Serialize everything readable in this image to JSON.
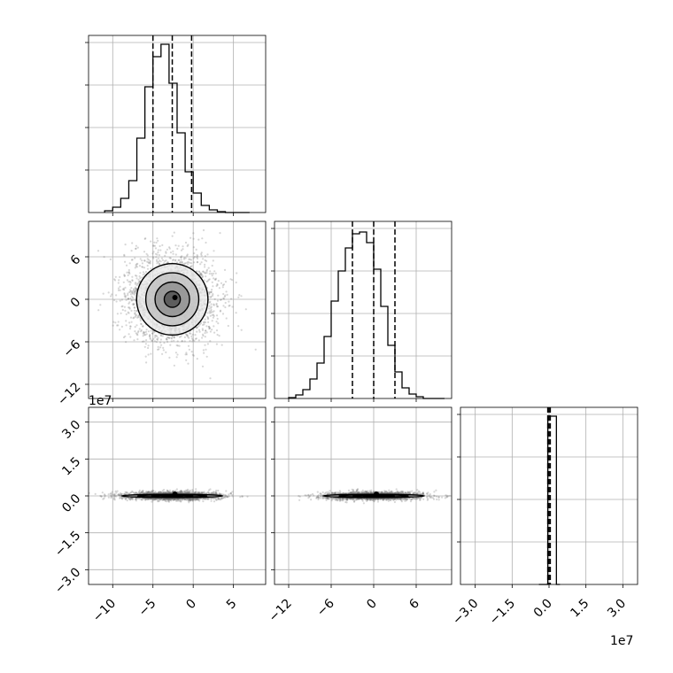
{
  "chart_data": [
    {
      "type": "histogram",
      "panel": "diag-0",
      "xlim": [
        -13,
        9
      ],
      "ylim": [
        0,
        1
      ],
      "x_ticks": [
        -10,
        -5,
        0,
        5
      ],
      "bin_edges": [
        -11,
        -10,
        -9,
        -8,
        -7,
        -6,
        -5,
        -4,
        -3,
        -2,
        -1,
        0,
        1,
        2,
        3,
        4,
        5,
        6,
        7
      ],
      "counts": [
        0.01,
        0.03,
        0.08,
        0.18,
        0.42,
        0.71,
        0.88,
        0.95,
        0.73,
        0.45,
        0.23,
        0.11,
        0.04,
        0.015,
        0.005,
        0,
        0,
        0
      ],
      "quantiles": [
        -5.0,
        -2.6,
        -0.2
      ],
      "grid": true
    },
    {
      "type": "histogram",
      "panel": "diag-1",
      "xlim": [
        -14,
        11
      ],
      "ylim": [
        0,
        1
      ],
      "y_ticks": [
        -12,
        -6,
        0,
        6
      ],
      "x_ticks": [
        -12,
        -6,
        0,
        6
      ],
      "bin_edges": [
        -12,
        -11,
        -10,
        -9,
        -8,
        -7,
        -6,
        -5,
        -4,
        -3,
        -2,
        -1,
        0,
        1,
        2,
        3,
        4,
        5,
        6,
        7,
        8,
        9,
        10
      ],
      "counts": [
        0.005,
        0.02,
        0.05,
        0.11,
        0.2,
        0.35,
        0.55,
        0.72,
        0.85,
        0.93,
        0.94,
        0.88,
        0.73,
        0.52,
        0.3,
        0.15,
        0.06,
        0.025,
        0.01,
        0,
        0,
        0
      ],
      "quantiles": [
        -3.0,
        0.0,
        3.0
      ],
      "grid": true
    },
    {
      "type": "histogram",
      "panel": "diag-2",
      "xlim": [
        -3.6,
        3.6
      ],
      "ylim": [
        0,
        1
      ],
      "x_ticks": [
        -3.0,
        -1.5,
        0.0,
        1.5,
        3.0
      ],
      "x_tick_labels": [
        "−3.0",
        "−1.5",
        "0.0",
        "1.5",
        "3.0"
      ],
      "x_offset": "1e7",
      "bar": {
        "left": -0.05,
        "right": 0.3,
        "height": 0.95
      },
      "quantiles": [
        -0.05,
        0.0,
        0.05
      ],
      "grid": true
    },
    {
      "type": "scatter-contour",
      "panel": "row1-col0",
      "xlim": [
        -13,
        9
      ],
      "ylim": [
        -14,
        11
      ],
      "x_ticks": [
        -10,
        -5,
        0,
        5
      ],
      "y_ticks": [
        -12,
        -6,
        0,
        6
      ],
      "center": [
        -2.6,
        0.0
      ],
      "grid": true
    },
    {
      "type": "scatter-contour",
      "panel": "row2-col0",
      "xlim": [
        -13,
        9
      ],
      "ylim": [
        -3.6,
        3.6
      ],
      "x_ticks": [
        -10,
        -5,
        0,
        5
      ],
      "x_tick_labels": [
        "−10",
        "−5",
        "0",
        "5"
      ],
      "y_ticks": [
        -3.0,
        -1.5,
        0.0,
        1.5,
        3.0
      ],
      "y_tick_labels": [
        "−3.0",
        "−1.5",
        "0.0",
        "1.5",
        "3.0"
      ],
      "y_offset": "1e7",
      "center": [
        -2.6,
        0.0
      ],
      "grid": true
    },
    {
      "type": "scatter-contour",
      "panel": "row2-col1",
      "xlim": [
        -14,
        11
      ],
      "ylim": [
        -3.6,
        3.6
      ],
      "x_ticks": [
        -12,
        -6,
        0,
        6
      ],
      "x_tick_labels": [
        "−12",
        "−6",
        "0",
        "6"
      ],
      "center": [
        0.0,
        0.0
      ],
      "grid": true
    }
  ],
  "labels": {
    "row1_y_ticks": [
      "−12",
      "−6",
      "0",
      "6"
    ]
  }
}
